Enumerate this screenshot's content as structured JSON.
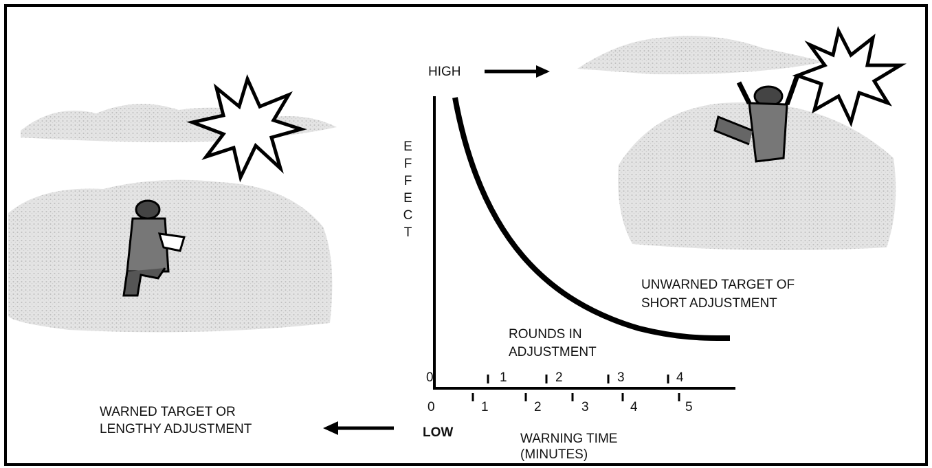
{
  "high_label": "HIGH",
  "low_label": "LOW",
  "y_axis_label": "EFFECT",
  "unwarned": {
    "line1": "UNWARNED TARGET OF",
    "line2": "SHORT ADJUSTMENT"
  },
  "warned": {
    "line1": "WARNED TARGET OR",
    "line2": "LENGTHY ADJUSTMENT"
  },
  "rounds_axis": {
    "title1": "ROUNDS IN",
    "title2": "ADJUSTMENT",
    "labels": [
      "0",
      "1",
      "2",
      "3",
      "4"
    ]
  },
  "time_axis": {
    "title1": "WARNING TIME",
    "title2": "(MINUTES)",
    "labels": [
      "0",
      "1",
      "2",
      "3",
      "4",
      "5"
    ]
  }
}
